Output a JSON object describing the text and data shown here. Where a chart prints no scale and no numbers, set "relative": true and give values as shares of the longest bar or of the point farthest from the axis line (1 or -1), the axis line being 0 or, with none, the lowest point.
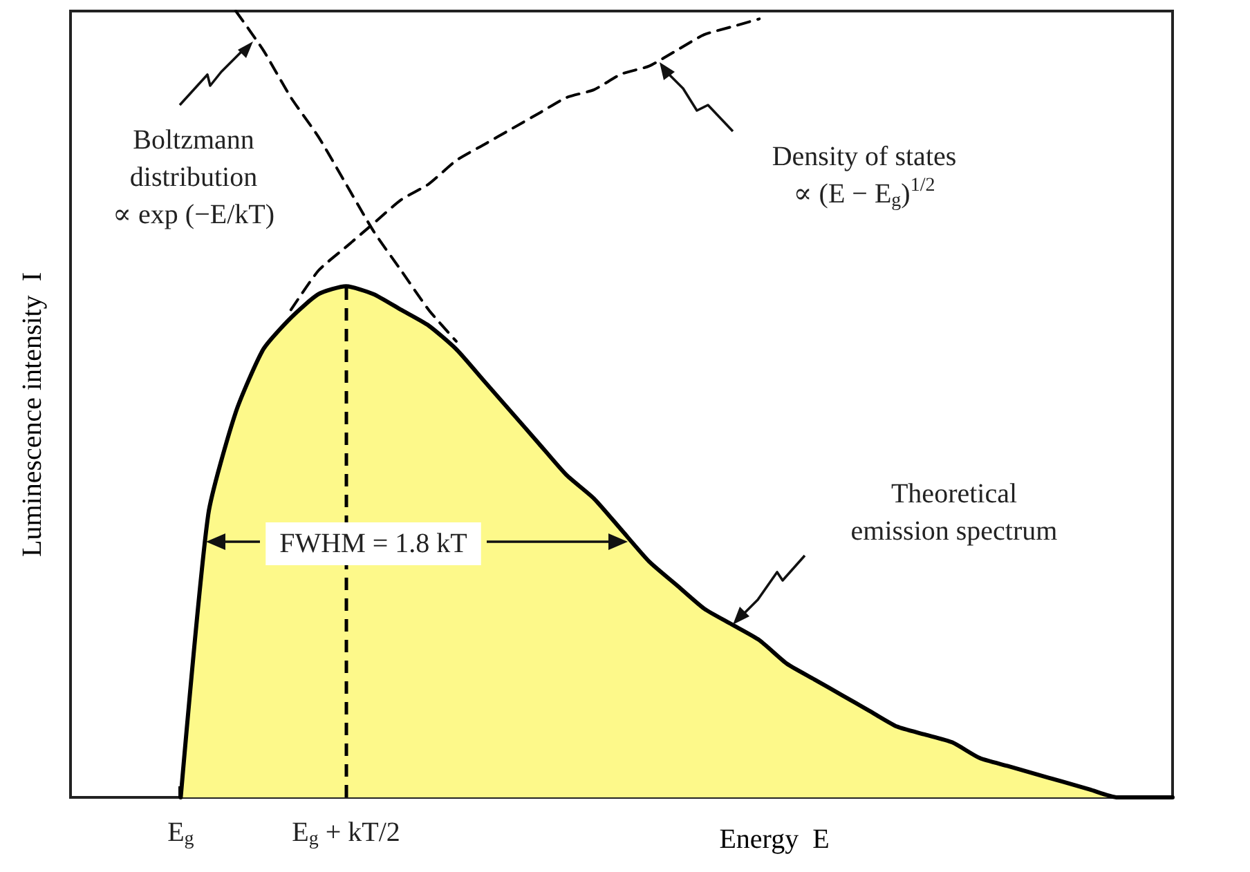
{
  "chart_data": {
    "type": "line",
    "relative": true,
    "xlabel": "Energy  E",
    "ylabel": "Luminescence intensity  I",
    "categories": [
      null,
      null,
      null,
      null,
      "E$_{g}$",
      null,
      null,
      null,
      null,
      null,
      "E$_{g}$ + kT/2",
      null,
      null,
      null,
      null,
      null,
      null,
      null,
      null,
      null,
      null,
      null,
      null,
      null,
      null,
      null,
      null,
      null,
      null,
      null,
      null,
      null,
      null,
      null,
      null,
      null,
      null,
      null,
      null,
      null,
      null
    ],
    "series": [
      {
        "type": "area",
        "color": "#fdf98a",
        "line_style": "solid",
        "values": [
          null,
          null,
          null,
          null,
          0,
          0.36,
          0.49,
          0.57,
          0.61,
          0.64,
          0.65,
          0.64,
          0.62,
          0.6,
          0.57,
          0.53,
          0.49,
          0.45,
          0.41,
          0.38,
          0.34,
          0.3,
          0.27,
          0.24,
          0.22,
          0.2,
          0.17,
          0.15,
          0.13,
          0.11,
          0.09,
          0.08,
          0.07,
          0.05,
          0.04,
          0.03,
          0.02,
          0.01,
          0,
          0,
          0
        ]
      },
      {
        "color": "#000000",
        "line_style": "dashed",
        "values": [
          null,
          null,
          null,
          null,
          null,
          null,
          1,
          0.95,
          0.89,
          0.84,
          0.78,
          0.72,
          0.67,
          0.62,
          0.58,
          null,
          null,
          null,
          null,
          null,
          null,
          null,
          null,
          null,
          null,
          null,
          null,
          null,
          null,
          null,
          null,
          null,
          null,
          null,
          null,
          null,
          null,
          null,
          null,
          null,
          null
        ]
      },
      {
        "color": "#000000",
        "line_style": "dashed",
        "values": [
          null,
          null,
          null,
          null,
          null,
          null,
          null,
          null,
          0.62,
          0.67,
          0.7,
          0.73,
          0.76,
          0.78,
          0.81,
          0.83,
          0.85,
          0.87,
          0.89,
          0.9,
          0.92,
          0.93,
          0.95,
          0.97,
          0.98,
          0.99,
          null,
          null,
          null,
          null,
          null,
          null,
          null,
          null,
          null,
          null,
          null,
          null,
          null,
          null,
          null
        ]
      }
    ],
    "ref_lines": [
      {
        "axis": "x",
        "value": "E$_{g}$ + kT/2",
        "line_style": "dashed",
        "color": "#000000"
      }
    ],
    "annotations": [
      "Boltzmann\ndistribution\n∝ exp (−E/kT)",
      "Density of states\n∝ (E − E$_{g}$)$^{1/2}$",
      "Theoretical\nemission spectrum",
      "FWHM = 1.8 kT"
    ],
    "marker": "none",
    "grid": false
  }
}
